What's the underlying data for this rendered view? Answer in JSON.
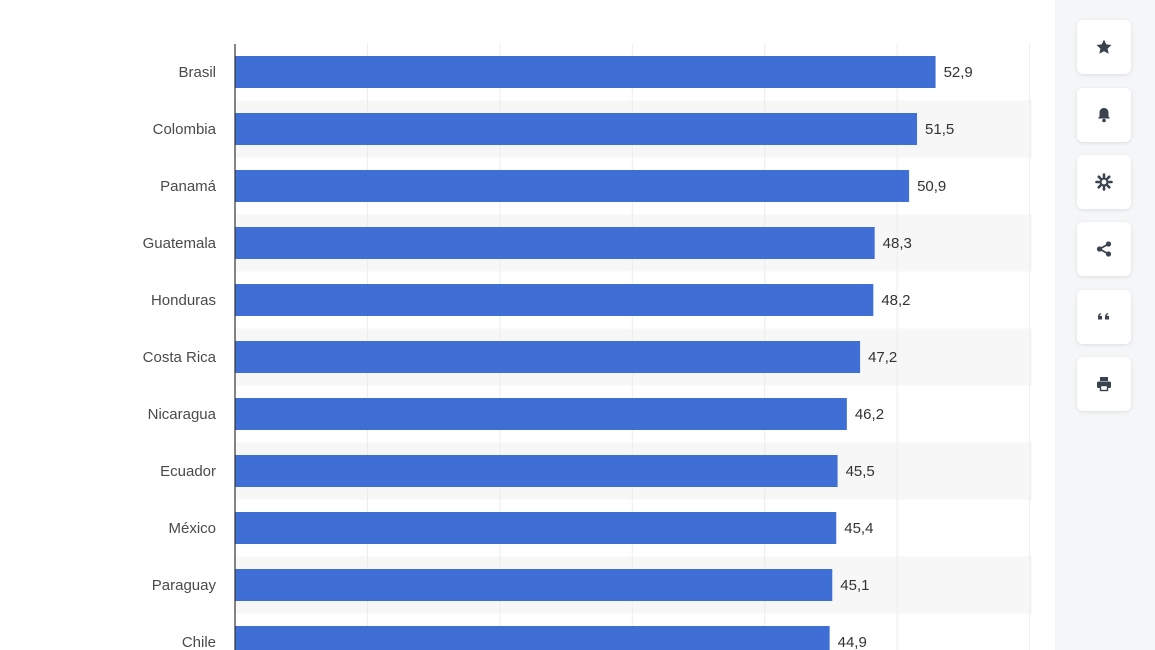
{
  "chart_data": {
    "type": "bar",
    "orientation": "horizontal",
    "categories": [
      "Brasil",
      "Colombia",
      "Panamá",
      "Guatemala",
      "Honduras",
      "Costa Rica",
      "Nicaragua",
      "Ecuador",
      "México",
      "Paraguay",
      "Chile"
    ],
    "values": [
      52.9,
      51.5,
      50.9,
      48.3,
      48.2,
      47.2,
      46.2,
      45.5,
      45.4,
      45.1,
      44.9
    ],
    "value_labels": [
      "52,9",
      "51,5",
      "50,9",
      "48,3",
      "48,2",
      "47,2",
      "46,2",
      "45,5",
      "45,4",
      "45,1",
      "44,9"
    ],
    "xlim": [
      0,
      60
    ],
    "grid": true,
    "bar_color": "#3f6fd4"
  },
  "toolbar": {
    "icons": [
      "star-icon",
      "bell-icon",
      "gear-icon",
      "share-icon",
      "quote-icon",
      "print-icon"
    ]
  }
}
